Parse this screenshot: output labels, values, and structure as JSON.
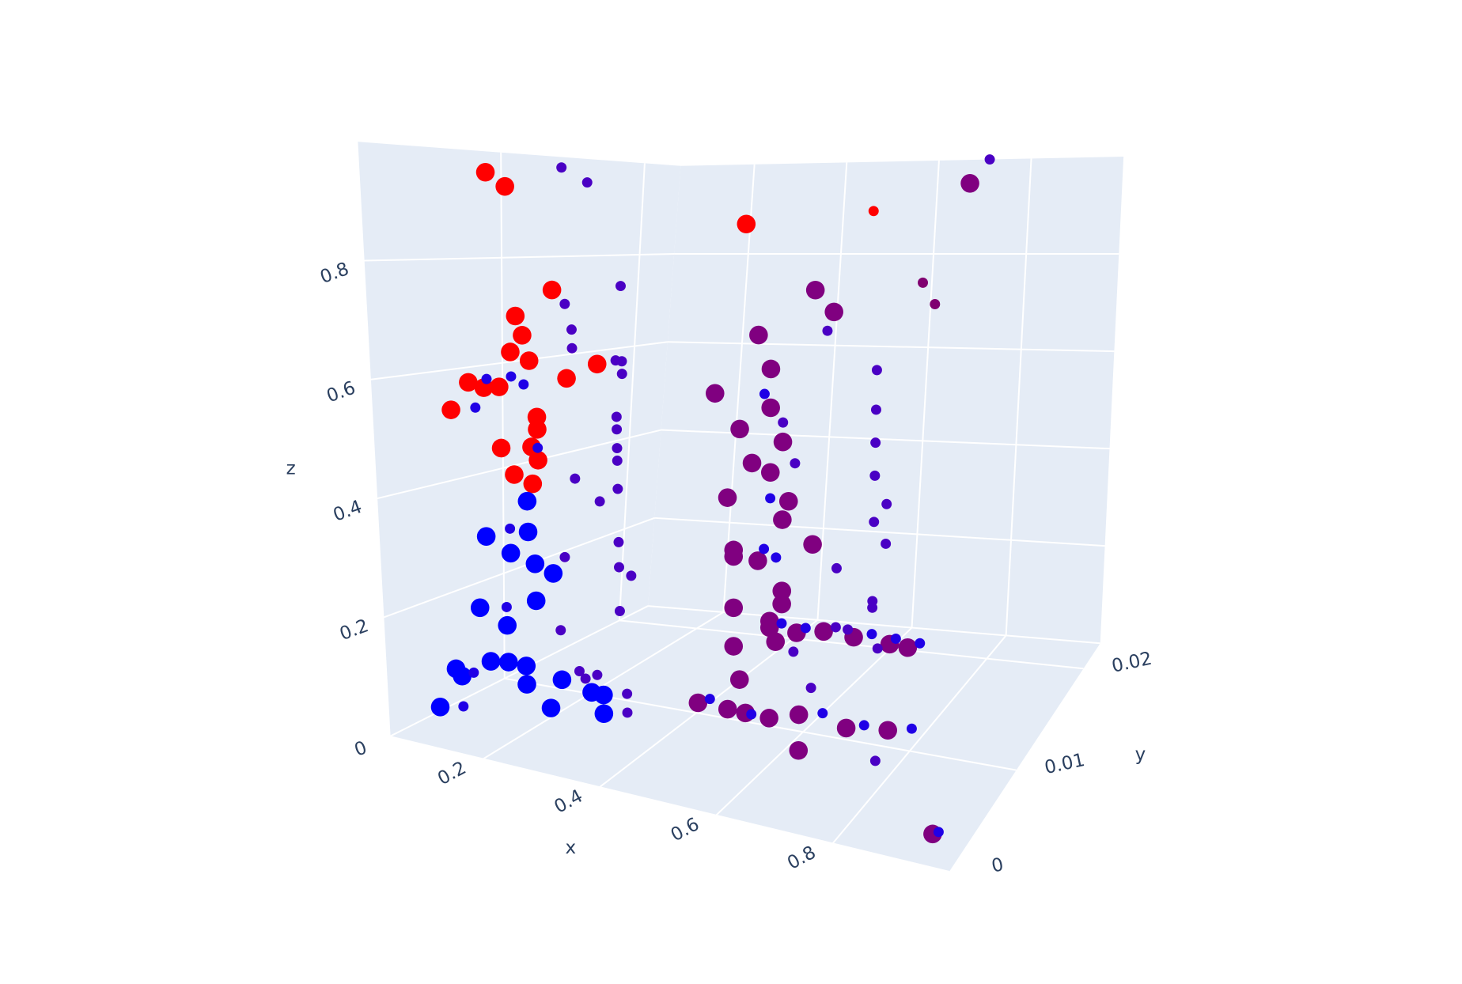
{
  "chart_data": {
    "type": "scatter3d",
    "x_label": "x",
    "y_label": "y",
    "z_label": "z",
    "xlim": [
      0.04,
      1.0
    ],
    "ylim": [
      0,
      0.0225
    ],
    "zlim": [
      0,
      1.0
    ],
    "xticks": [
      0.2,
      0.4,
      0.6,
      0.8
    ],
    "yticks": [
      0,
      0.01,
      0.02
    ],
    "zticks": [
      0,
      0.2,
      0.4,
      0.6,
      0.8
    ],
    "grid": true,
    "background": "#e5ecf6",
    "series": [
      {
        "color": "#ff0000",
        "size": 20,
        "x": [
          0.24,
          0.27,
          0.34,
          0.28,
          0.29,
          0.27,
          0.3,
          0.2,
          0.225,
          0.25,
          0.36,
          0.41,
          0.17,
          0.31,
          0.31,
          0.25,
          0.3,
          0.31,
          0.27,
          0.3,
          0.65
        ],
        "y": [
          0,
          0,
          0,
          0,
          0,
          0,
          0,
          0,
          0,
          0,
          0,
          0,
          0,
          0,
          0,
          0,
          0,
          0,
          0,
          0,
          0
        ],
        "z": [
          0.97,
          0.95,
          0.79,
          0.74,
          0.71,
          0.68,
          0.67,
          0.62,
          0.615,
          0.62,
          0.65,
          0.68,
          0.57,
          0.58,
          0.56,
          0.52,
          0.53,
          0.51,
          0.48,
          0.47,
          0.93
        ]
      },
      {
        "color": "#ff0000",
        "size": 11,
        "x": [
          0.85
        ],
        "y": [
          0
        ],
        "z": [
          0.97
        ]
      },
      {
        "color": "#0000ff",
        "size": 20,
        "x": [
          0.29,
          0.22,
          0.29,
          0.26,
          0.3,
          0.33,
          0.3,
          0.205,
          0.25,
          0.22,
          0.25,
          0.28,
          0.16,
          0.17,
          0.34,
          0.28,
          0.39,
          0.41,
          0.13,
          0.32,
          0.41
        ],
        "y": [
          0,
          0,
          0,
          0,
          0,
          0,
          0,
          0,
          0,
          0,
          0,
          0,
          0,
          0,
          0,
          0,
          0,
          0,
          0,
          0,
          0
        ],
        "z": [
          0.44,
          0.37,
          0.39,
          0.35,
          0.34,
          0.33,
          0.28,
          0.25,
          0.23,
          0.165,
          0.17,
          0.17,
          0.14,
          0.13,
          0.16,
          0.14,
          0.15,
          0.15,
          0.07,
          0.11,
          0.12
        ]
      },
      {
        "color": "#800080",
        "size": 20,
        "x": [
          0.67,
          0.76,
          0.79,
          0.67,
          0.69,
          0.6,
          0.69,
          0.64,
          0.71,
          0.66,
          0.69,
          0.62,
          0.72,
          0.71,
          0.76,
          0.63,
          0.63,
          0.67,
          0.71,
          0.71,
          0.63,
          0.69,
          0.69,
          0.735,
          0.78,
          0.83,
          0.7,
          0.63,
          0.89,
          0.92,
          0.64,
          0.57,
          0.62,
          0.65,
          0.69,
          0.74,
          0.82,
          0.89,
          0.74,
          0.97
        ],
        "y": [
          0.0225,
          0,
          0,
          0,
          0,
          0,
          0,
          0,
          0,
          0,
          0,
          0,
          0,
          0,
          0,
          0,
          0,
          0,
          0,
          0,
          0,
          0,
          0,
          0,
          0,
          0,
          0,
          0,
          0,
          0,
          0,
          0,
          0,
          0,
          0,
          0,
          0,
          0,
          0,
          0
        ],
        "z": [
          0.95,
          0.84,
          0.81,
          0.76,
          0.71,
          0.66,
          0.65,
          0.61,
          0.6,
          0.56,
          0.55,
          0.5,
          0.51,
          0.48,
          0.45,
          0.42,
          0.41,
          0.41,
          0.37,
          0.35,
          0.33,
          0.32,
          0.31,
          0.31,
          0.32,
          0.32,
          0.29,
          0.27,
          0.32,
          0.32,
          0.22,
          0.17,
          0.17,
          0.17,
          0.17,
          0.185,
          0.18,
          0.19,
          0.13,
          0.05
        ]
      },
      {
        "color": "#2000e6",
        "size": 11,
        "x": [
          0.23,
          0.27,
          0.29,
          0.21,
          0.31,
          0.26,
          0.25,
          0.19,
          0.17,
          0.68,
          0.69,
          0.68,
          0.7,
          0.71,
          0.75,
          0.86,
          0.9,
          0.94,
          0.59,
          0.66,
          0.78,
          0.85,
          0.93,
          0.98
        ],
        "y": [
          0,
          0,
          0,
          0,
          0,
          0,
          0,
          0,
          0,
          0,
          0,
          0,
          0,
          0,
          0,
          0,
          0,
          0,
          0,
          0,
          0,
          0,
          0,
          0
        ],
        "z": [
          0.63,
          0.64,
          0.63,
          0.58,
          0.53,
          0.39,
          0.26,
          0.14,
          0.08,
          0.67,
          0.51,
          0.43,
          0.42,
          0.32,
          0.32,
          0.33,
          0.33,
          0.33,
          0.18,
          0.17,
          0.195,
          0.19,
          0.2,
          0.055
        ]
      },
      {
        "color": "#800070",
        "size": 11,
        "x": [
          0.93,
          0.95
        ],
        "y": [
          0,
          0
        ],
        "z": [
          0.87,
          0.84
        ]
      },
      {
        "color": "#4a00c4",
        "size": 11,
        "x": [
          0.36,
          0.4,
          0.45,
          0.36,
          0.37,
          0.37,
          0.44,
          0.45,
          0.45,
          0.44,
          0.44,
          0.44,
          0.44,
          0.37,
          0.44,
          0.41,
          0.44,
          0.35,
          0.44,
          0.46,
          0.44,
          0.34,
          0.37,
          0.4,
          0.38,
          0.45,
          0.45,
          0.78,
          0.86,
          0.86,
          0.86,
          0.86,
          0.88,
          0.86,
          0.88,
          0.8,
          0.86,
          0.86,
          0.71,
          0.73,
          0.8,
          0.82,
          0.87,
          0.73,
          0.76,
          0.87,
          0.71
        ],
        "y": [
          0,
          0,
          0,
          0,
          0,
          0,
          0,
          0,
          0,
          0,
          0,
          0,
          0,
          0,
          0,
          0,
          0,
          0,
          0,
          0,
          0,
          0,
          0,
          0,
          0,
          0,
          0,
          0,
          0,
          0,
          0,
          0,
          0,
          0,
          0,
          0,
          0,
          0,
          0,
          0,
          0,
          0,
          0,
          0,
          0,
          0,
          0.0225
        ],
        "z": [
          0.99,
          0.97,
          0.81,
          0.77,
          0.73,
          0.7,
          0.69,
          0.69,
          0.67,
          0.6,
          0.58,
          0.55,
          0.53,
          0.49,
          0.485,
          0.46,
          0.4,
          0.36,
          0.36,
          0.35,
          0.29,
          0.24,
          0.18,
          0.18,
          0.17,
          0.16,
          0.13,
          0.78,
          0.73,
          0.67,
          0.62,
          0.57,
          0.53,
          0.5,
          0.47,
          0.42,
          0.38,
          0.37,
          0.63,
          0.57,
          0.33,
          0.33,
          0.31,
          0.28,
          0.23,
          0.14,
          1.0
        ]
      }
    ]
  }
}
